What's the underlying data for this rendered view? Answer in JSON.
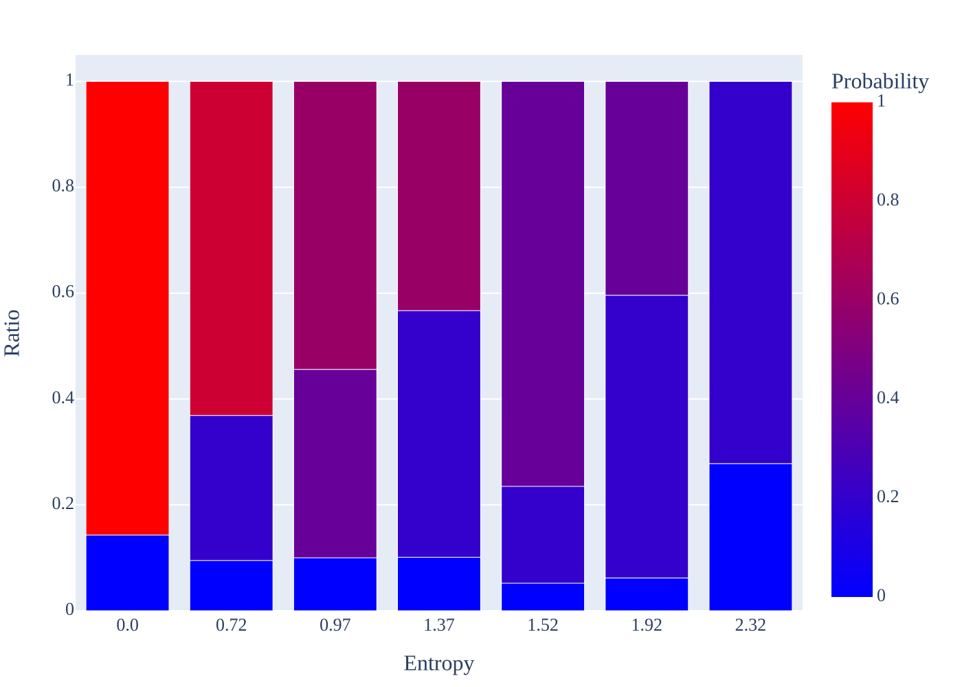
{
  "chart_data": {
    "type": "stacked-bar",
    "x_label": "Entropy",
    "y_label": "Ratio",
    "categories": [
      "0.0",
      "0.72",
      "0.97",
      "1.37",
      "1.52",
      "1.92",
      "2.32"
    ],
    "stacks": [
      {
        "values": [
          0.143,
          0.857
        ],
        "colors": [
          "#0000ff",
          "#ff0000"
        ]
      },
      {
        "values": [
          0.095,
          0.274,
          0.631
        ],
        "colors": [
          "#0000ff",
          "#3300cc",
          "#cc0033"
        ]
      },
      {
        "values": [
          0.1,
          0.356,
          0.544
        ],
        "colors": [
          "#0000ff",
          "#660099",
          "#990066"
        ]
      },
      {
        "values": [
          0.101,
          0.466,
          0.433
        ],
        "colors": [
          "#0000ff",
          "#3300cc",
          "#990066"
        ]
      },
      {
        "values": [
          0.052,
          0.183,
          0.765
        ],
        "colors": [
          "#0000ff",
          "#3300cc",
          "#660099"
        ]
      },
      {
        "values": [
          0.062,
          0.534,
          0.404
        ],
        "colors": [
          "#0000ff",
          "#3300cc",
          "#660099"
        ]
      },
      {
        "values": [
          0.278,
          0.722
        ],
        "colors": [
          "#0000ff",
          "#3300cc"
        ]
      }
    ],
    "ylim": [
      0,
      1.05
    ],
    "yticks": [
      0,
      0.2,
      0.4,
      0.6,
      0.8,
      1
    ],
    "grid": true,
    "colorbar": {
      "title": "Probability",
      "lim": [
        0,
        1
      ],
      "ticks": [
        0,
        0.2,
        0.4,
        0.6,
        0.8,
        1
      ],
      "colors": [
        "#0000ff",
        "#ff0000"
      ]
    }
  }
}
